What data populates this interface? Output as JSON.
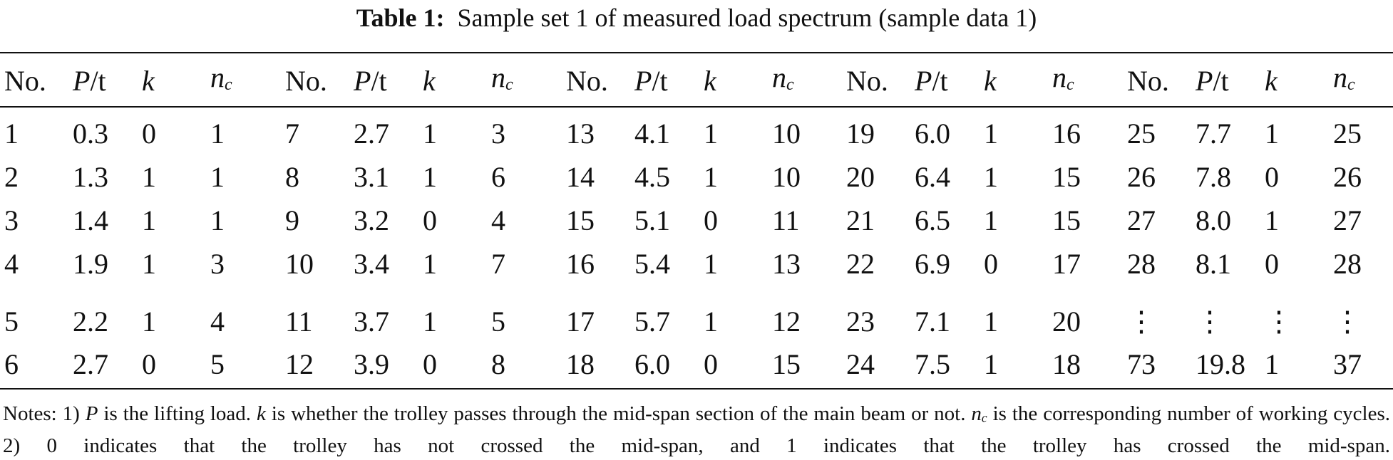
{
  "title": {
    "label": "Table 1:",
    "text": "Sample set 1 of measured load spectrum (sample data 1)"
  },
  "table": {
    "header": [
      [
        {
          "text": "No."
        }
      ],
      [
        {
          "italic": "P"
        },
        {
          "text": "/t"
        }
      ],
      [
        {
          "italic": "k"
        }
      ],
      [
        {
          "italic": "n",
          "sub": "c"
        }
      ]
    ],
    "rows": [
      [
        "1",
        "0.3",
        "0",
        "1",
        "7",
        "2.7",
        "1",
        "3",
        "13",
        "4.1",
        "1",
        "10",
        "19",
        "6.0",
        "1",
        "16",
        "25",
        "7.7",
        "1",
        "25"
      ],
      [
        "2",
        "1.3",
        "1",
        "1",
        "8",
        "3.1",
        "1",
        "6",
        "14",
        "4.5",
        "1",
        "10",
        "20",
        "6.4",
        "1",
        "15",
        "26",
        "7.8",
        "0",
        "26"
      ],
      [
        "3",
        "1.4",
        "1",
        "1",
        "9",
        "3.2",
        "0",
        "4",
        "15",
        "5.1",
        "0",
        "11",
        "21",
        "6.5",
        "1",
        "15",
        "27",
        "8.0",
        "1",
        "27"
      ],
      [
        "4",
        "1.9",
        "1",
        "3",
        "10",
        "3.4",
        "1",
        "7",
        "16",
        "5.4",
        "1",
        "13",
        "22",
        "6.9",
        "0",
        "17",
        "28",
        "8.1",
        "0",
        "28"
      ],
      [
        "5",
        "2.2",
        "1",
        "4",
        "11",
        "3.7",
        "1",
        "5",
        "17",
        "5.7",
        "1",
        "12",
        "23",
        "7.1",
        "1",
        "20",
        "⋮",
        "⋮",
        "⋮",
        "⋮"
      ],
      [
        "6",
        "2.7",
        "0",
        "5",
        "12",
        "3.9",
        "0",
        "8",
        "18",
        "6.0",
        "0",
        "15",
        "24",
        "7.5",
        "1",
        "18",
        "73",
        "19.8",
        "1",
        "37"
      ]
    ]
  },
  "notes": [
    {
      "text": "Notes: 1) "
    },
    {
      "italic": "P"
    },
    {
      "text": " is the lifting load. "
    },
    {
      "italic": "k"
    },
    {
      "text": " is whether the trolley passes through the mid-span section of the main beam or not. "
    },
    {
      "italic": "n",
      "sub": "c"
    },
    {
      "text": " is the corresponding number of working cycles. 2) 0 indicates that the trolley has not crossed the mid-span, and 1 indicates that the trolley has crossed the mid-span."
    }
  ]
}
